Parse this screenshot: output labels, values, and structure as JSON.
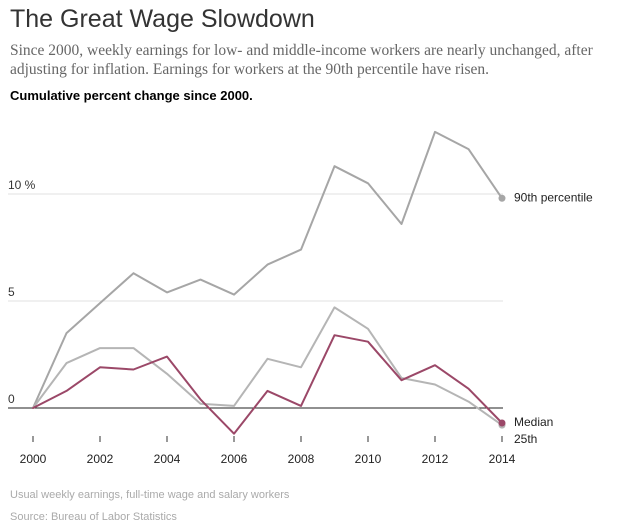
{
  "header": {
    "title": "The Great Wage Slowdown",
    "subtitle": "Since 2000, weekly earnings for low- and middle-income workers are nearly unchanged, after adjusting for inflation. Earnings for workers at the 90th percentile have risen."
  },
  "chart_data": {
    "type": "line",
    "title": "Cumulative percent change since 2000.",
    "xlabel": "",
    "ylabel": "",
    "x": [
      2000,
      2001,
      2002,
      2003,
      2004,
      2005,
      2006,
      2007,
      2008,
      2009,
      2010,
      2011,
      2012,
      2013,
      2014
    ],
    "x_ticks": [
      "2000",
      "2002",
      "2004",
      "2006",
      "2008",
      "2010",
      "2012",
      "2014"
    ],
    "y_ticks": [
      "0",
      "5",
      "10 %"
    ],
    "y_tick_values": [
      0,
      5,
      10
    ],
    "xlim": [
      2000,
      2014
    ],
    "ylim": [
      -1.3,
      13
    ],
    "grid": true,
    "legend": "labels at line ends",
    "series": [
      {
        "name": "90th percentile",
        "color": "#a6a6a6",
        "values": [
          0,
          3.5,
          4.9,
          6.3,
          5.4,
          6.0,
          5.3,
          6.7,
          7.4,
          11.3,
          10.5,
          8.6,
          12.9,
          12.1,
          9.8
        ]
      },
      {
        "name": "25th",
        "color": "#b5b5b5",
        "values": [
          0,
          2.1,
          2.8,
          2.8,
          1.6,
          0.2,
          0.1,
          2.3,
          1.9,
          4.7,
          3.7,
          1.4,
          1.1,
          0.3,
          -0.8
        ]
      },
      {
        "name": "Median",
        "color": "#9b4868",
        "values": [
          0,
          0.8,
          1.9,
          1.8,
          2.4,
          0.4,
          -1.2,
          0.8,
          0.1,
          3.4,
          3.1,
          1.3,
          2.0,
          0.9,
          -0.7
        ]
      }
    ]
  },
  "footer": {
    "note": "Usual weekly earnings, full-time wage and salary workers",
    "source": "Source: Bureau of Labor Statistics"
  }
}
